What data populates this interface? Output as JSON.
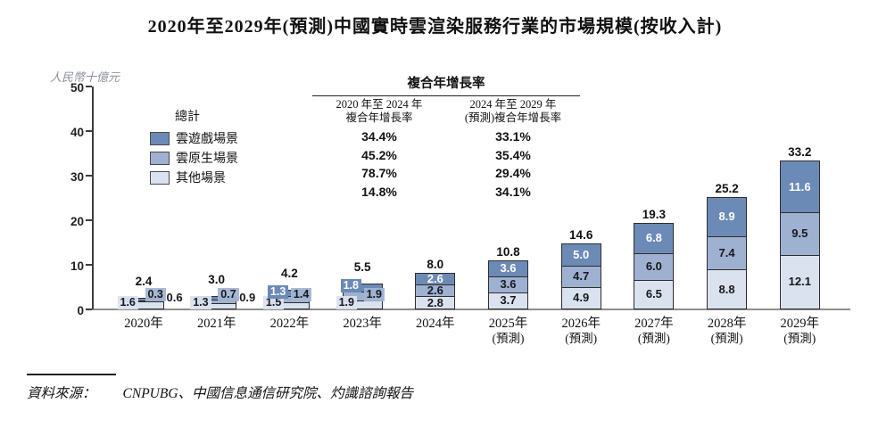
{
  "title": "2020年至2029年(預測)中國實時雲渲染服務行業的市場規模(按收入計)",
  "y_axis": {
    "unit_label": "人民幣十億元",
    "ticks": [
      0,
      10,
      20,
      30,
      40,
      50
    ]
  },
  "legend": {
    "total_label": "總計",
    "items": [
      {
        "label": "雲遊戲場景",
        "color_key": "gaming"
      },
      {
        "label": "雲原生場景",
        "color_key": "native"
      },
      {
        "label": "其他場景",
        "color_key": "other"
      }
    ]
  },
  "cagr_table": {
    "title": "複合年增長率",
    "col1_header": "2020 年至 2024 年\n複合年增長率",
    "col2_header": "2024 年至 2029 年\n(預測)複合年增長率",
    "rows": [
      {
        "series": "總計",
        "cagr_2020_2024": "34.4%",
        "cagr_2024_2029": "33.1%"
      },
      {
        "series": "雲遊戲場景",
        "cagr_2020_2024": "45.2%",
        "cagr_2024_2029": "35.4%"
      },
      {
        "series": "雲原生場景",
        "cagr_2020_2024": "78.7%",
        "cagr_2024_2029": "29.4%"
      },
      {
        "series": "其他場景",
        "cagr_2020_2024": "14.8%",
        "cagr_2024_2029": "34.1%"
      }
    ]
  },
  "chart_data": {
    "type": "bar",
    "subtype": "stacked",
    "title": "2020年至2029年(預測)中國實時雲渲染服務行業的市場規模(按收入計)",
    "ylabel": "人民幣十億元",
    "ylim": [
      0,
      50
    ],
    "grid": false,
    "legend_position": "upper-left",
    "categories": [
      {
        "label": "2020年",
        "note": ""
      },
      {
        "label": "2021年",
        "note": ""
      },
      {
        "label": "2022年",
        "note": ""
      },
      {
        "label": "2023年",
        "note": ""
      },
      {
        "label": "2024年",
        "note": ""
      },
      {
        "label": "2025年",
        "note": "(預測)"
      },
      {
        "label": "2026年",
        "note": "(預測)"
      },
      {
        "label": "2027年",
        "note": "(預測)"
      },
      {
        "label": "2028年",
        "note": "(預測)"
      },
      {
        "label": "2029年",
        "note": "(預測)"
      }
    ],
    "series": [
      {
        "name": "其他場景",
        "key": "other",
        "values": [
          1.6,
          1.3,
          1.5,
          1.9,
          2.8,
          3.7,
          4.9,
          6.5,
          8.8,
          12.1
        ]
      },
      {
        "name": "雲原生場景",
        "key": "native",
        "values": [
          0.3,
          0.7,
          1.4,
          1.9,
          2.6,
          3.6,
          4.7,
          6.0,
          7.4,
          9.5
        ]
      },
      {
        "name": "雲遊戲場景",
        "key": "gaming",
        "values": [
          0.6,
          0.9,
          1.3,
          1.8,
          2.6,
          3.6,
          5.0,
          6.8,
          8.9,
          11.6
        ]
      }
    ],
    "totals": [
      2.4,
      3.0,
      4.2,
      5.5,
      8.0,
      10.8,
      14.6,
      19.3,
      25.2,
      33.2
    ],
    "colors": {
      "gaming": "#6c8ab6",
      "native": "#9fb1d0",
      "other": "#dbe2ef"
    }
  },
  "source": {
    "label": "資料來源：",
    "text": "CNPUBG、中國信息通信研究院、灼識諮詢報告"
  }
}
